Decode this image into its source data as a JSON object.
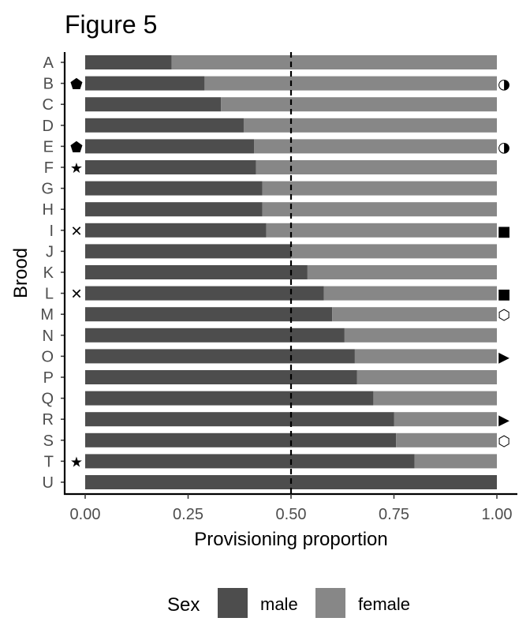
{
  "chart_data": {
    "type": "bar",
    "stacked": true,
    "orientation": "horizontal",
    "title": "Figure 5",
    "xlabel": "Provisioning proportion",
    "ylabel": "Brood",
    "xlim": [
      0,
      1
    ],
    "x_ticks": [
      "0.00",
      "0.25",
      "0.50",
      "0.75",
      "1.00"
    ],
    "reference_line": {
      "x": 0.5,
      "style": "dashed"
    },
    "grid": false,
    "categories": [
      "A",
      "B",
      "C",
      "D",
      "E",
      "F",
      "G",
      "H",
      "I",
      "J",
      "K",
      "L",
      "M",
      "N",
      "O",
      "P",
      "Q",
      "R",
      "S",
      "T",
      "U"
    ],
    "series": [
      {
        "name": "male",
        "color": "#4d4d4d",
        "values": [
          0.21,
          0.29,
          0.33,
          0.385,
          0.41,
          0.415,
          0.43,
          0.43,
          0.44,
          0.5,
          0.54,
          0.58,
          0.6,
          0.63,
          0.655,
          0.66,
          0.7,
          0.75,
          0.755,
          0.8,
          1.0
        ]
      },
      {
        "name": "female",
        "color": "#878787",
        "values": [
          0.79,
          0.71,
          0.67,
          0.615,
          0.59,
          0.585,
          0.57,
          0.57,
          0.56,
          0.5,
          0.46,
          0.42,
          0.4,
          0.37,
          0.345,
          0.34,
          0.3,
          0.25,
          0.245,
          0.2,
          0.0
        ]
      }
    ],
    "left_markers": [
      "",
      "⬟",
      "",
      "",
      "⬟",
      "★",
      "",
      "",
      "✕",
      "",
      "",
      "✕",
      "",
      "",
      "",
      "",
      "",
      "",
      "",
      "★",
      ""
    ],
    "right_markers": [
      "",
      "◑",
      "",
      "",
      "◑",
      "",
      "",
      "",
      "■",
      "",
      "",
      "■",
      "⬡",
      "",
      "▶",
      "",
      "",
      "▶",
      "⬡",
      "",
      ""
    ],
    "legend": {
      "title": "Sex",
      "position": "bottom",
      "items": [
        "male",
        "female"
      ]
    }
  }
}
